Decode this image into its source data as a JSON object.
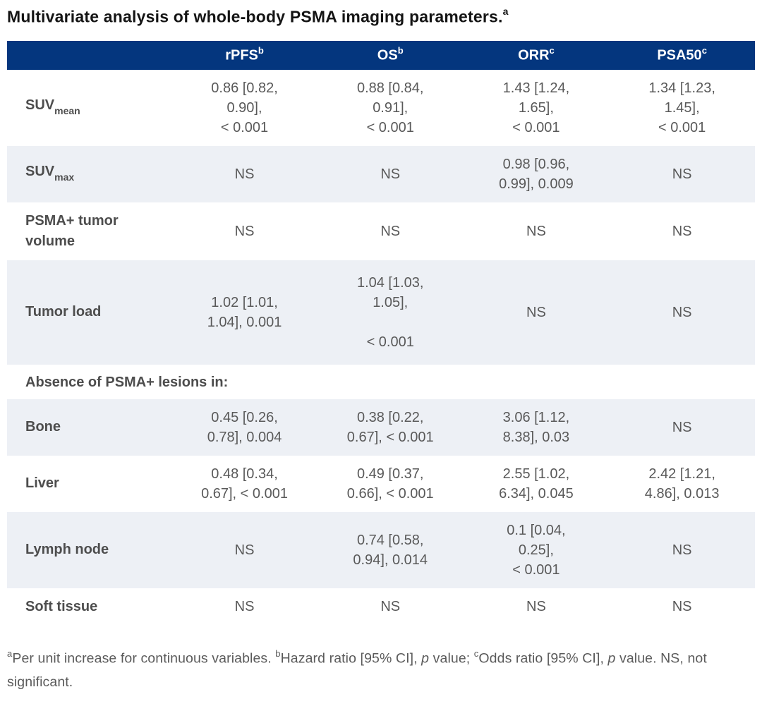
{
  "title": {
    "text": "Multivariate analysis of whole-body PSMA imaging parameters.",
    "sup": "a"
  },
  "colors": {
    "header_bg": "#04367e",
    "stripe_row_bg": "#edf0f5",
    "label_text": "#4d4d4d",
    "data_text": "#595959"
  },
  "table": {
    "columns": [
      {
        "text": "rPFS",
        "sup": "b"
      },
      {
        "text": "OS",
        "sup": "b"
      },
      {
        "text": "ORR",
        "sup": "c"
      },
      {
        "text": "PSA50",
        "sup": "c"
      }
    ],
    "rows": [
      {
        "type": "data",
        "shade": false,
        "label": {
          "text": "SUV",
          "sub": "mean"
        },
        "cells": [
          [
            "0.86 [0.82,",
            "0.90],",
            "< 0.001"
          ],
          [
            "0.88 [0.84,",
            "0.91],",
            "< 0.001"
          ],
          [
            "1.43 [1.24,",
            "1.65],",
            "< 0.001"
          ],
          [
            "1.34 [1.23,",
            "1.45],",
            "< 0.001"
          ]
        ]
      },
      {
        "type": "data",
        "shade": true,
        "label": {
          "text": "SUV",
          "sub": "max"
        },
        "cells": [
          [
            "NS"
          ],
          [
            "NS"
          ],
          [
            "0.98 [0.96,",
            "0.99], 0.009"
          ],
          [
            "NS"
          ]
        ]
      },
      {
        "type": "data",
        "shade": false,
        "label": {
          "text": "PSMA+ tumor volume"
        },
        "cells": [
          [
            "NS"
          ],
          [
            "NS"
          ],
          [
            "NS"
          ],
          [
            "NS"
          ]
        ]
      },
      {
        "type": "data",
        "shade": true,
        "tall": true,
        "label": {
          "text": "Tumor load"
        },
        "cells": [
          [
            "1.02 [1.01,",
            "1.04], 0.001"
          ],
          [
            "1.04 [1.03,",
            "1.05],",
            "",
            "< 0.001"
          ],
          [
            "NS"
          ],
          [
            "NS"
          ]
        ]
      },
      {
        "type": "section",
        "shade": false,
        "label": {
          "text": "Absence of PSMA+ lesions in:"
        }
      },
      {
        "type": "data",
        "shade": true,
        "label": {
          "text": "Bone"
        },
        "cells": [
          [
            "0.45 [0.26,",
            "0.78], 0.004"
          ],
          [
            "0.38 [0.22,",
            "0.67], < 0.001"
          ],
          [
            "3.06 [1.12,",
            "8.38], 0.03"
          ],
          [
            "NS"
          ]
        ]
      },
      {
        "type": "data",
        "shade": false,
        "label": {
          "text": "Liver"
        },
        "cells": [
          [
            "0.48 [0.34,",
            "0.67], < 0.001"
          ],
          [
            "0.49 [0.37,",
            "0.66], < 0.001"
          ],
          [
            "2.55 [1.02,",
            "6.34], 0.045"
          ],
          [
            "2.42 [1.21,",
            "4.86], 0.013"
          ]
        ]
      },
      {
        "type": "data",
        "shade": true,
        "label": {
          "text": "Lymph node"
        },
        "cells": [
          [
            "NS"
          ],
          [
            "0.74 [0.58,",
            "0.94], 0.014"
          ],
          [
            "0.1 [0.04,",
            "0.25],",
            "< 0.001"
          ],
          [
            "NS"
          ]
        ]
      },
      {
        "type": "data",
        "shade": false,
        "label": {
          "text": "Soft tissue"
        },
        "cells": [
          [
            "NS"
          ],
          [
            "NS"
          ],
          [
            "NS"
          ],
          [
            "NS"
          ]
        ]
      }
    ]
  },
  "footnote": {
    "segments": [
      {
        "text": "a",
        "sup": true
      },
      {
        "text": "Per unit increase for continuous variables. "
      },
      {
        "text": "b",
        "sup": true
      },
      {
        "text": "Hazard ratio [95% CI], "
      },
      {
        "text": "p",
        "italic": true
      },
      {
        "text": " value; "
      },
      {
        "text": "c",
        "sup": true
      },
      {
        "text": "Odds ratio [95% CI], "
      },
      {
        "text": "p",
        "italic": true
      },
      {
        "text": " value. NS, not significant."
      }
    ]
  }
}
